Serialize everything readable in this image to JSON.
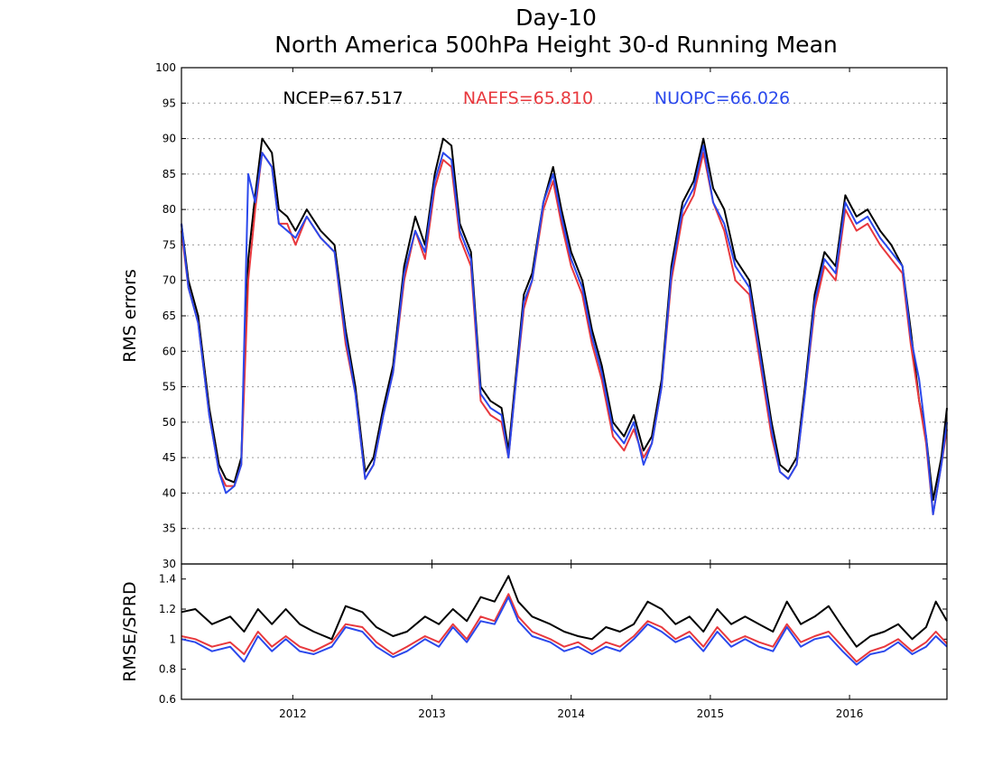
{
  "title": {
    "line1": "Day-10",
    "line2": "North America 500hPa Height 30-d Running Mean"
  },
  "legend": [
    {
      "label": "NCEP=67.517",
      "color": "#000000"
    },
    {
      "label": "NAEFS=65.810",
      "color": "#e8383d"
    },
    {
      "label": "NUOPC=66.026",
      "color": "#2a48ec"
    }
  ],
  "chart_data": [
    {
      "type": "line",
      "ylabel": "RMS errors",
      "xlabel": "",
      "ylim": [
        30,
        100
      ],
      "yticks": [
        30,
        35,
        40,
        45,
        50,
        55,
        60,
        65,
        70,
        75,
        80,
        85,
        90,
        95,
        100
      ],
      "xlim": [
        2011.2,
        2016.7
      ],
      "xticks": [
        "2012",
        "2013",
        "2014",
        "2015",
        "2016"
      ],
      "grid": true,
      "series": [
        {
          "name": "NCEP",
          "color": "#000000",
          "x": [
            2011.2,
            2011.25,
            2011.32,
            2011.4,
            2011.47,
            2011.52,
            2011.58,
            2011.63,
            2011.68,
            2011.73,
            2011.78,
            2011.85,
            2011.9,
            2011.96,
            2012.02,
            2012.1,
            2012.2,
            2012.3,
            2012.38,
            2012.45,
            2012.52,
            2012.58,
            2012.65,
            2012.72,
            2012.8,
            2012.88,
            2012.95,
            2013.02,
            2013.08,
            2013.14,
            2013.2,
            2013.28,
            2013.35,
            2013.42,
            2013.5,
            2013.55,
            2013.6,
            2013.66,
            2013.72,
            2013.8,
            2013.87,
            2013.93,
            2014.0,
            2014.08,
            2014.15,
            2014.22,
            2014.3,
            2014.38,
            2014.45,
            2014.52,
            2014.58,
            2014.65,
            2014.72,
            2014.8,
            2014.88,
            2014.95,
            2015.02,
            2015.1,
            2015.18,
            2015.28,
            2015.36,
            2015.44,
            2015.5,
            2015.56,
            2015.62,
            2015.68,
            2015.75,
            2015.82,
            2015.9,
            2015.97,
            2016.05,
            2016.13,
            2016.22,
            2016.3,
            2016.38,
            2016.44,
            2016.5,
            2016.55,
            2016.6,
            2016.66,
            2016.7
          ],
          "y": [
            78,
            70,
            65,
            52,
            44,
            42,
            41.5,
            45,
            73,
            82,
            90,
            88,
            80,
            79,
            77,
            80,
            77,
            75,
            63,
            55,
            43,
            45,
            52,
            58,
            72,
            79,
            75,
            85,
            90,
            89,
            78,
            74,
            55,
            53,
            52,
            46,
            56,
            68,
            71,
            81,
            86,
            80,
            74,
            70,
            63,
            58,
            50,
            48,
            51,
            46,
            48,
            56,
            72,
            81,
            84,
            90,
            83,
            80,
            73,
            70,
            60,
            50,
            44,
            43,
            45,
            55,
            68,
            74,
            72,
            82,
            79,
            80,
            77,
            75,
            72,
            63,
            53,
            48,
            39,
            45,
            52
          ]
        },
        {
          "name": "NAEFS",
          "color": "#e8383d",
          "x": [
            2011.2,
            2011.25,
            2011.32,
            2011.4,
            2011.47,
            2011.52,
            2011.58,
            2011.63,
            2011.68,
            2011.73,
            2011.78,
            2011.85,
            2011.9,
            2011.96,
            2012.02,
            2012.1,
            2012.2,
            2012.3,
            2012.38,
            2012.45,
            2012.52,
            2012.58,
            2012.65,
            2012.72,
            2012.8,
            2012.88,
            2012.95,
            2013.02,
            2013.08,
            2013.14,
            2013.2,
            2013.28,
            2013.35,
            2013.42,
            2013.5,
            2013.55,
            2013.6,
            2013.66,
            2013.72,
            2013.8,
            2013.87,
            2013.93,
            2014.0,
            2014.08,
            2014.15,
            2014.22,
            2014.3,
            2014.38,
            2014.45,
            2014.52,
            2014.58,
            2014.65,
            2014.72,
            2014.8,
            2014.88,
            2014.95,
            2015.02,
            2015.1,
            2015.18,
            2015.28,
            2015.36,
            2015.44,
            2015.5,
            2015.56,
            2015.62,
            2015.68,
            2015.75,
            2015.82,
            2015.9,
            2015.97,
            2016.05,
            2016.13,
            2016.22,
            2016.3,
            2016.38,
            2016.44,
            2016.5,
            2016.55,
            2016.6,
            2016.66,
            2016.7
          ],
          "y": [
            77,
            69,
            64,
            51,
            43,
            41,
            41,
            44,
            70,
            80,
            88,
            86,
            78,
            78,
            75,
            79,
            76,
            74,
            61,
            54,
            42,
            44,
            51,
            57,
            70,
            77,
            73,
            83,
            87,
            86,
            76,
            72,
            53,
            51,
            50,
            45,
            55,
            66,
            70,
            80,
            84,
            78,
            72,
            68,
            61,
            56,
            48,
            46,
            49,
            45,
            47,
            55,
            70,
            79,
            82,
            88,
            81,
            77,
            70,
            68,
            58,
            48,
            43,
            42,
            44,
            54,
            66,
            72,
            70,
            80,
            77,
            78,
            75,
            73,
            71,
            61,
            53,
            47,
            37,
            44,
            49
          ]
        },
        {
          "name": "NUOPC",
          "color": "#2a48ec",
          "x": [
            2011.2,
            2011.25,
            2011.32,
            2011.4,
            2011.47,
            2011.52,
            2011.58,
            2011.63,
            2011.68,
            2011.73,
            2011.78,
            2011.85,
            2011.9,
            2011.96,
            2012.02,
            2012.1,
            2012.2,
            2012.3,
            2012.38,
            2012.45,
            2012.52,
            2012.58,
            2012.65,
            2012.72,
            2012.8,
            2012.88,
            2012.95,
            2013.02,
            2013.08,
            2013.14,
            2013.2,
            2013.28,
            2013.35,
            2013.42,
            2013.5,
            2013.55,
            2013.6,
            2013.66,
            2013.72,
            2013.8,
            2013.87,
            2013.93,
            2014.0,
            2014.08,
            2014.15,
            2014.22,
            2014.3,
            2014.38,
            2014.45,
            2014.52,
            2014.58,
            2014.65,
            2014.72,
            2014.8,
            2014.88,
            2014.95,
            2015.02,
            2015.1,
            2015.18,
            2015.28,
            2015.36,
            2015.44,
            2015.5,
            2015.56,
            2015.62,
            2015.68,
            2015.75,
            2015.82,
            2015.9,
            2015.97,
            2016.05,
            2016.13,
            2016.22,
            2016.3,
            2016.38,
            2016.44,
            2016.5,
            2016.55,
            2016.6,
            2016.66,
            2016.7
          ],
          "y": [
            78,
            69,
            64,
            51,
            43,
            40,
            41,
            44,
            85,
            81,
            88,
            86,
            78,
            77,
            76,
            79,
            76,
            74,
            62,
            54,
            42,
            44,
            51,
            57,
            71,
            77,
            74,
            84,
            88,
            87,
            77,
            73,
            54,
            52,
            51,
            45,
            55,
            67,
            70,
            81,
            85,
            79,
            73,
            69,
            62,
            57,
            49,
            47,
            50,
            44,
            47,
            55,
            71,
            80,
            83,
            89,
            81,
            78,
            72,
            69,
            59,
            49,
            43,
            42,
            44,
            54,
            67,
            73,
            71,
            81,
            78,
            79,
            76,
            74,
            72,
            62,
            56,
            48,
            37,
            44,
            50
          ]
        }
      ]
    },
    {
      "type": "line",
      "ylabel": "RMSE/SPRD",
      "xlabel": "",
      "ylim": [
        0.6,
        1.5
      ],
      "yticks": [
        0.6,
        0.8,
        1,
        1.2,
        1.4
      ],
      "xlim": [
        2011.2,
        2016.7
      ],
      "xticks": [
        "2012",
        "2013",
        "2014",
        "2015",
        "2016"
      ],
      "grid": false,
      "series": [
        {
          "name": "NCEP",
          "color": "#000000",
          "x": [
            2011.2,
            2011.3,
            2011.42,
            2011.55,
            2011.65,
            2011.75,
            2011.85,
            2011.95,
            2012.05,
            2012.15,
            2012.28,
            2012.38,
            2012.5,
            2012.6,
            2012.72,
            2012.82,
            2012.95,
            2013.05,
            2013.15,
            2013.25,
            2013.35,
            2013.45,
            2013.55,
            2013.62,
            2013.72,
            2013.85,
            2013.95,
            2014.05,
            2014.15,
            2014.25,
            2014.35,
            2014.45,
            2014.55,
            2014.65,
            2014.75,
            2014.85,
            2014.95,
            2015.05,
            2015.15,
            2015.25,
            2015.35,
            2015.45,
            2015.55,
            2015.65,
            2015.75,
            2015.85,
            2015.95,
            2016.05,
            2016.15,
            2016.25,
            2016.35,
            2016.45,
            2016.55,
            2016.62,
            2016.7
          ],
          "y": [
            1.18,
            1.2,
            1.1,
            1.15,
            1.05,
            1.2,
            1.1,
            1.2,
            1.1,
            1.05,
            1.0,
            1.22,
            1.18,
            1.08,
            1.02,
            1.05,
            1.15,
            1.1,
            1.2,
            1.12,
            1.28,
            1.25,
            1.42,
            1.25,
            1.15,
            1.1,
            1.05,
            1.02,
            1.0,
            1.08,
            1.05,
            1.1,
            1.25,
            1.2,
            1.1,
            1.15,
            1.05,
            1.2,
            1.1,
            1.15,
            1.1,
            1.05,
            1.25,
            1.1,
            1.15,
            1.22,
            1.08,
            0.95,
            1.02,
            1.05,
            1.1,
            1.0,
            1.08,
            1.25,
            1.12
          ]
        },
        {
          "name": "NAEFS",
          "color": "#e8383d",
          "x": [
            2011.2,
            2011.3,
            2011.42,
            2011.55,
            2011.65,
            2011.75,
            2011.85,
            2011.95,
            2012.05,
            2012.15,
            2012.28,
            2012.38,
            2012.5,
            2012.6,
            2012.72,
            2012.82,
            2012.95,
            2013.05,
            2013.15,
            2013.25,
            2013.35,
            2013.45,
            2013.55,
            2013.62,
            2013.72,
            2013.85,
            2013.95,
            2014.05,
            2014.15,
            2014.25,
            2014.35,
            2014.45,
            2014.55,
            2014.65,
            2014.75,
            2014.85,
            2014.95,
            2015.05,
            2015.15,
            2015.25,
            2015.35,
            2015.45,
            2015.55,
            2015.65,
            2015.75,
            2015.85,
            2015.95,
            2016.05,
            2016.15,
            2016.25,
            2016.35,
            2016.45,
            2016.55,
            2016.62,
            2016.7
          ],
          "y": [
            1.02,
            1.0,
            0.95,
            0.98,
            0.9,
            1.05,
            0.95,
            1.02,
            0.95,
            0.92,
            0.98,
            1.1,
            1.08,
            0.98,
            0.9,
            0.95,
            1.02,
            0.98,
            1.1,
            1.0,
            1.15,
            1.12,
            1.3,
            1.15,
            1.05,
            1.0,
            0.95,
            0.98,
            0.92,
            0.98,
            0.95,
            1.02,
            1.12,
            1.08,
            1.0,
            1.05,
            0.95,
            1.08,
            0.98,
            1.02,
            0.98,
            0.95,
            1.1,
            0.98,
            1.02,
            1.05,
            0.95,
            0.85,
            0.92,
            0.95,
            1.0,
            0.92,
            0.98,
            1.05,
            0.97
          ]
        },
        {
          "name": "NUOPC",
          "color": "#2a48ec",
          "x": [
            2011.2,
            2011.3,
            2011.42,
            2011.55,
            2011.65,
            2011.75,
            2011.85,
            2011.95,
            2012.05,
            2012.15,
            2012.28,
            2012.38,
            2012.5,
            2012.6,
            2012.72,
            2012.82,
            2012.95,
            2013.05,
            2013.15,
            2013.25,
            2013.35,
            2013.45,
            2013.55,
            2013.62,
            2013.72,
            2013.85,
            2013.95,
            2014.05,
            2014.15,
            2014.25,
            2014.35,
            2014.45,
            2014.55,
            2014.65,
            2014.75,
            2014.85,
            2014.95,
            2015.05,
            2015.15,
            2015.25,
            2015.35,
            2015.45,
            2015.55,
            2015.65,
            2015.75,
            2015.85,
            2015.95,
            2016.05,
            2016.15,
            2016.25,
            2016.35,
            2016.45,
            2016.55,
            2016.62,
            2016.7
          ],
          "y": [
            1.0,
            0.98,
            0.92,
            0.95,
            0.85,
            1.02,
            0.92,
            1.0,
            0.92,
            0.9,
            0.95,
            1.08,
            1.05,
            0.95,
            0.88,
            0.92,
            1.0,
            0.95,
            1.08,
            0.98,
            1.12,
            1.1,
            1.28,
            1.12,
            1.02,
            0.98,
            0.92,
            0.95,
            0.9,
            0.95,
            0.92,
            1.0,
            1.1,
            1.05,
            0.98,
            1.02,
            0.92,
            1.05,
            0.95,
            1.0,
            0.95,
            0.92,
            1.08,
            0.95,
            1.0,
            1.02,
            0.92,
            0.83,
            0.9,
            0.92,
            0.98,
            0.9,
            0.95,
            1.02,
            0.95
          ]
        }
      ]
    }
  ]
}
